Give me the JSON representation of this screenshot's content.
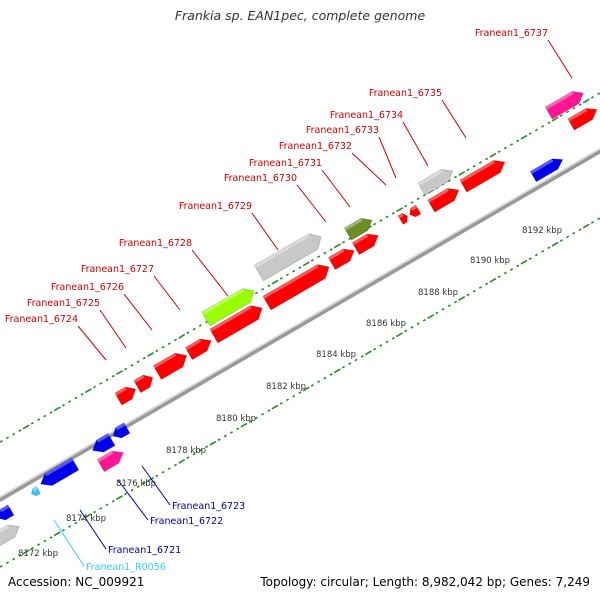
{
  "title": "Frankia sp. EAN1pec, complete genome",
  "footer": {
    "accession": "Accession: NC_009921",
    "topology": "Topology: circular; Length: 8,982,042 bp; Genes: 7,249"
  },
  "colors": {
    "red_gene": "#ff0000",
    "blue_gene": "#0000ee",
    "pink_gene": "#ff1493",
    "lime_gene": "#99ff00",
    "olive_gene": "#6b8e23",
    "grey_gene": "#c8c8c8",
    "cyan_rna": "#33ccff",
    "backbone": "#777777",
    "tick": "#228b22",
    "label_red": "#cc0000",
    "label_blue": "#0000aa",
    "label_cyan": "#33ccff"
  },
  "gene_labels": [
    {
      "text": "Franean1_6737",
      "color": "red"
    },
    {
      "text": "Franean1_6735",
      "color": "red"
    },
    {
      "text": "Franean1_6734",
      "color": "red"
    },
    {
      "text": "Franean1_6733",
      "color": "red"
    },
    {
      "text": "Franean1_6732",
      "color": "red"
    },
    {
      "text": "Franean1_6731",
      "color": "red"
    },
    {
      "text": "Franean1_6730",
      "color": "red"
    },
    {
      "text": "Franean1_6729",
      "color": "red"
    },
    {
      "text": "Franean1_6728",
      "color": "red"
    },
    {
      "text": "Franean1_6727",
      "color": "red"
    },
    {
      "text": "Franean1_6726",
      "color": "red"
    },
    {
      "text": "Franean1_6725",
      "color": "red"
    },
    {
      "text": "Franean1_6724",
      "color": "red"
    },
    {
      "text": "Franean1_6723",
      "color": "blue"
    },
    {
      "text": "Franean1_6722",
      "color": "blue"
    },
    {
      "text": "Franean1_6721",
      "color": "blue"
    },
    {
      "text": "Franean1_R0056",
      "color": "cyan"
    }
  ],
  "scale_labels": [
    "8172 kbp",
    "8174 kbp",
    "8176 kbp",
    "8178 kbp",
    "8180 kbp",
    "8182 kbp",
    "8184 kbp",
    "8186 kbp",
    "8188 kbp",
    "8190 kbp",
    "8192 kbp"
  ]
}
